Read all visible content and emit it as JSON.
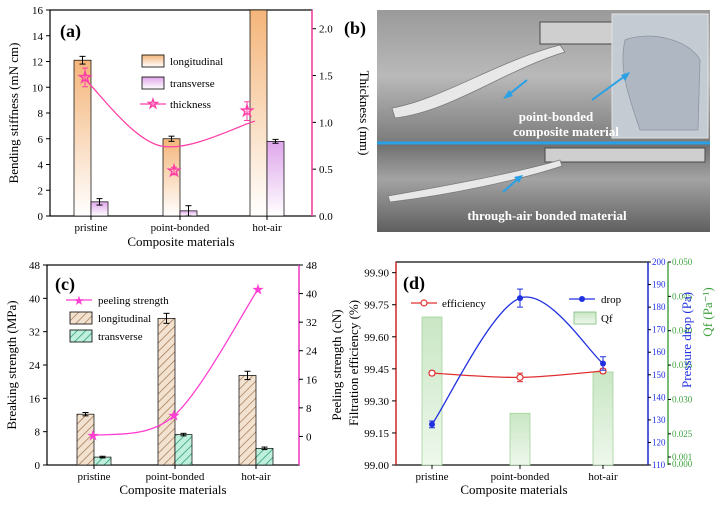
{
  "panels": {
    "a": "(a)",
    "b": "(b)",
    "c": "(c)",
    "d": "(d)"
  },
  "photo": {
    "label_top_line1": "point-bonded",
    "label_top_line2": "composite material",
    "label_bottom": "through-air bonded material"
  },
  "colors": {
    "longitudinal": "#f6c28b",
    "transverse": "#e7b6ef",
    "thickness": "#ff3fa6",
    "peeling": "#ff3fd2",
    "hatch_long": "#b5875a",
    "hatch_trans": "#2eb88a",
    "efficiency": "#e03030",
    "drop": "#2030e0",
    "qf": "#3fa23f"
  },
  "chart_data": [
    {
      "id": "a",
      "type": "bar",
      "xlabel": "Composite materials",
      "ylabel": "Bending stiffness (mN cm)",
      "y2label": "Thickness (mm)",
      "categories": [
        "pristine",
        "point-bonded",
        "hot-air"
      ],
      "ylim": [
        0,
        16
      ],
      "yticks": [
        0,
        2,
        4,
        6,
        8,
        10,
        12,
        14,
        16
      ],
      "y2lim": [
        0,
        2.2
      ],
      "y2ticks": [
        0.0,
        0.5,
        1.0,
        1.5,
        2.0
      ],
      "series": [
        {
          "name": "longitudinal",
          "values": [
            12.1,
            6.0,
            16.0
          ],
          "errors": [
            0.3,
            0.2,
            0
          ]
        },
        {
          "name": "transverse",
          "values": [
            1.1,
            0.4,
            5.8
          ],
          "errors": [
            0.25,
            0.4,
            0.15
          ]
        }
      ],
      "line": {
        "name": "thickness",
        "values": [
          1.48,
          0.48,
          1.12
        ],
        "errors": [
          0.1,
          0.04,
          0.1
        ]
      }
    },
    {
      "id": "c",
      "type": "bar",
      "xlabel": "Composite materials",
      "ylabel": "Breaking strength (MPa)",
      "y2label": "Peeling strength (cN)",
      "categories": [
        "pristine",
        "point-bonded",
        "hot-air"
      ],
      "ylim": [
        0,
        48
      ],
      "yticks": [
        0,
        8,
        16,
        24,
        32,
        40,
        48
      ],
      "y2lim": [
        -8,
        48
      ],
      "y2ticks": [
        0,
        8,
        16,
        24,
        32,
        40,
        48
      ],
      "series": [
        {
          "name": "longitudinal",
          "values": [
            12.2,
            35.2,
            21.5
          ],
          "errors": [
            0.4,
            1.2,
            1.0
          ]
        },
        {
          "name": "transverse",
          "values": [
            1.9,
            7.3,
            4.0
          ],
          "errors": [
            0.2,
            0.3,
            0.3
          ]
        }
      ],
      "line": {
        "name": "peeling strength",
        "values": [
          0.2,
          5.8,
          41.2
        ]
      }
    },
    {
      "id": "d",
      "type": "bar",
      "xlabel": "Composite materials",
      "ylabel": "Filtration efficiency (%)",
      "y2label": "Pressure drop (Pa)",
      "y3label": "Qf (Pa⁻¹)",
      "categories": [
        "pristine",
        "point-bonded",
        "hot-air"
      ],
      "ylim": [
        99.0,
        99.95
      ],
      "yticks": [
        99.0,
        99.15,
        99.3,
        99.45,
        99.6,
        99.75,
        99.9
      ],
      "ytick_labels": [
        "99.00",
        "99.15",
        "99.30",
        "99.45",
        "99.60",
        "99.75",
        "99.90"
      ],
      "y2lim": [
        110,
        200
      ],
      "y2ticks": [
        110,
        120,
        130,
        140,
        150,
        160,
        170,
        180,
        190,
        200
      ],
      "y3ticks": [
        0.0,
        0.001,
        0.025,
        0.03,
        0.035,
        0.04,
        0.045,
        0.05
      ],
      "y3tick_labels": [
        "0.000",
        "0.001",
        "0.025",
        "0.030",
        "0.035",
        "0.040",
        "0.045",
        "0.050"
      ],
      "series": [
        {
          "name": "efficiency",
          "values": [
            99.43,
            99.41,
            99.44
          ],
          "errors": [
            0.01,
            0.02,
            0.01
          ]
        },
        {
          "name": "drop",
          "values": [
            128,
            184,
            155
          ],
          "errors": [
            1.5,
            4,
            3
          ]
        },
        {
          "name": "Qf",
          "values": [
            0.042,
            0.028,
            0.034
          ]
        }
      ]
    }
  ]
}
